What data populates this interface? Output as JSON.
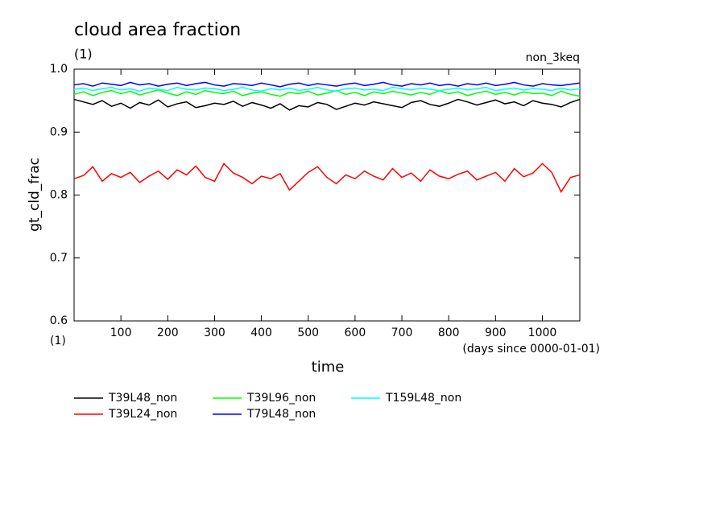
{
  "chart_data": {
    "type": "line",
    "title": "cloud area fraction",
    "units": "(1)",
    "experiment": "non_3keq",
    "y_label": "gt_cld_frac",
    "y_units": "(1)",
    "x_label": "time",
    "x_units": "(days since 0000-01-01)",
    "x": [
      0,
      20,
      40,
      60,
      80,
      100,
      120,
      140,
      160,
      180,
      200,
      220,
      240,
      260,
      280,
      300,
      320,
      340,
      360,
      380,
      400,
      420,
      440,
      460,
      480,
      500,
      520,
      540,
      560,
      580,
      600,
      620,
      640,
      660,
      680,
      700,
      720,
      740,
      760,
      780,
      800,
      820,
      840,
      860,
      880,
      900,
      920,
      940,
      960,
      980,
      1000,
      1020,
      1040,
      1060,
      1080
    ],
    "xlim": [
      0,
      1080
    ],
    "xticks": [
      100,
      200,
      300,
      400,
      500,
      600,
      700,
      800,
      900,
      1000
    ],
    "ylim": [
      0.6,
      1.0
    ],
    "yticks": [
      0.6,
      0.7,
      0.8,
      0.9,
      {
        "value": 1.0,
        "label": "1.0"
      }
    ],
    "series": [
      {
        "name": "T39L48_non",
        "color": "#000000",
        "values": [
          0.952,
          0.948,
          0.944,
          0.95,
          0.941,
          0.946,
          0.938,
          0.947,
          0.943,
          0.951,
          0.94,
          0.945,
          0.948,
          0.939,
          0.942,
          0.946,
          0.944,
          0.949,
          0.941,
          0.947,
          0.943,
          0.938,
          0.945,
          0.935,
          0.942,
          0.94,
          0.947,
          0.944,
          0.936,
          0.941,
          0.946,
          0.943,
          0.948,
          0.945,
          0.942,
          0.939,
          0.947,
          0.95,
          0.944,
          0.941,
          0.946,
          0.952,
          0.948,
          0.943,
          0.947,
          0.951,
          0.945,
          0.948,
          0.942,
          0.95,
          0.946,
          0.944,
          0.94,
          0.947,
          0.952
        ]
      },
      {
        "name": "T39L24_non",
        "color": "#ff0000",
        "values": [
          0.826,
          0.831,
          0.845,
          0.822,
          0.834,
          0.828,
          0.836,
          0.82,
          0.83,
          0.838,
          0.825,
          0.84,
          0.832,
          0.846,
          0.828,
          0.822,
          0.85,
          0.835,
          0.828,
          0.818,
          0.83,
          0.826,
          0.834,
          0.808,
          0.822,
          0.836,
          0.845,
          0.828,
          0.818,
          0.832,
          0.826,
          0.838,
          0.83,
          0.824,
          0.842,
          0.828,
          0.835,
          0.822,
          0.84,
          0.83,
          0.826,
          0.833,
          0.838,
          0.824,
          0.83,
          0.836,
          0.822,
          0.842,
          0.829,
          0.835,
          0.85,
          0.836,
          0.805,
          0.828,
          0.832
        ]
      },
      {
        "name": "T39L96_non",
        "color": "#00ff00",
        "values": [
          0.96,
          0.964,
          0.958,
          0.963,
          0.966,
          0.961,
          0.965,
          0.959,
          0.963,
          0.967,
          0.962,
          0.958,
          0.964,
          0.96,
          0.966,
          0.963,
          0.961,
          0.965,
          0.958,
          0.962,
          0.964,
          0.96,
          0.957,
          0.963,
          0.961,
          0.965,
          0.959,
          0.962,
          0.966,
          0.96,
          0.963,
          0.958,
          0.964,
          0.961,
          0.965,
          0.962,
          0.959,
          0.963,
          0.96,
          0.966,
          0.961,
          0.964,
          0.958,
          0.962,
          0.965,
          0.96,
          0.963,
          0.959,
          0.964,
          0.961,
          0.962,
          0.958,
          0.965,
          0.96,
          0.957
        ]
      },
      {
        "name": "T79L48_non",
        "color": "#0000ff",
        "values": [
          0.975,
          0.977,
          0.973,
          0.978,
          0.976,
          0.974,
          0.979,
          0.975,
          0.977,
          0.973,
          0.976,
          0.978,
          0.974,
          0.977,
          0.979,
          0.975,
          0.973,
          0.977,
          0.976,
          0.974,
          0.978,
          0.975,
          0.972,
          0.976,
          0.978,
          0.974,
          0.977,
          0.975,
          0.973,
          0.976,
          0.978,
          0.974,
          0.976,
          0.979,
          0.975,
          0.973,
          0.977,
          0.975,
          0.978,
          0.974,
          0.976,
          0.973,
          0.977,
          0.975,
          0.978,
          0.974,
          0.976,
          0.979,
          0.975,
          0.973,
          0.977,
          0.975,
          0.974,
          0.976,
          0.978
        ]
      },
      {
        "name": "T159L48_non",
        "color": "#00ffff",
        "values": [
          0.968,
          0.97,
          0.966,
          0.969,
          0.971,
          0.967,
          0.969,
          0.965,
          0.97,
          0.968,
          0.966,
          0.971,
          0.968,
          0.967,
          0.97,
          0.969,
          0.966,
          0.968,
          0.971,
          0.967,
          0.965,
          0.969,
          0.967,
          0.97,
          0.966,
          0.968,
          0.971,
          0.967,
          0.965,
          0.969,
          0.97,
          0.967,
          0.968,
          0.966,
          0.971,
          0.969,
          0.967,
          0.97,
          0.968,
          0.966,
          0.968,
          0.97,
          0.967,
          0.969,
          0.971,
          0.966,
          0.968,
          0.97,
          0.967,
          0.969,
          0.968,
          0.966,
          0.97,
          0.967,
          0.969
        ]
      }
    ]
  }
}
